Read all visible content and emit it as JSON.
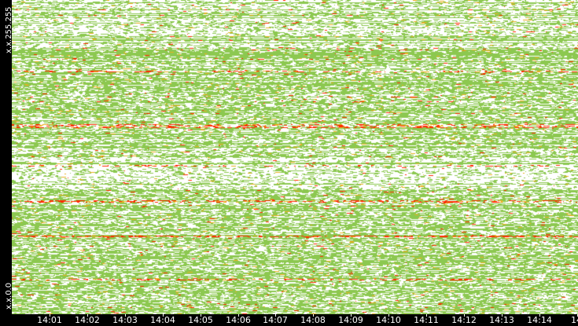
{
  "chart_data": {
    "type": "heatmap",
    "title": "",
    "xlabel": "",
    "ylabel": "",
    "y_axis": {
      "top_label": "x.x.255.255",
      "bottom_label": "x.x.0.0"
    },
    "x_ticks": [
      "14:01",
      "14:02",
      "14:03",
      "14:04",
      "14:05",
      "14:06",
      "14:07",
      "14:08",
      "14:09",
      "14:10",
      "14:11",
      "14:12",
      "14:13",
      "14:14",
      "14"
    ],
    "colors": {
      "background": "#ffffff",
      "low": "#8cc850",
      "medium": "#e8b020",
      "high": "#ff2a00",
      "axis_bg": "#000000",
      "axis_text": "#ffffff"
    },
    "legend": "none",
    "grid": false
  }
}
